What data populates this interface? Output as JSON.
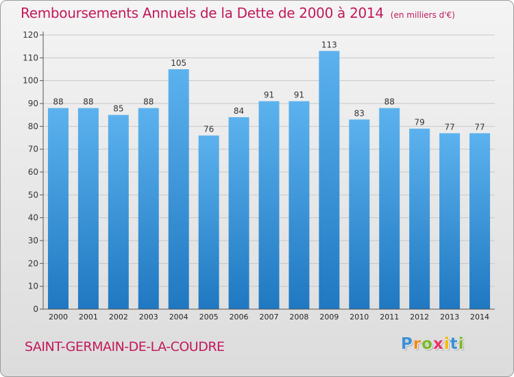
{
  "chart_data": {
    "type": "bar",
    "title": "Remboursements Annuels de la Dette de 2000 à 2014",
    "subtitle": "(en milliers d'€)",
    "categories": [
      "2000",
      "2001",
      "2002",
      "2003",
      "2004",
      "2005",
      "2006",
      "2007",
      "2008",
      "2009",
      "2010",
      "2011",
      "2012",
      "2013",
      "2014"
    ],
    "values": [
      88,
      88,
      85,
      88,
      105,
      76,
      84,
      91,
      91,
      113,
      83,
      88,
      79,
      77,
      77
    ],
    "ylim": [
      0,
      120
    ],
    "yticks": [
      0,
      10,
      20,
      30,
      40,
      50,
      60,
      70,
      80,
      90,
      100,
      110,
      120
    ],
    "xlabel": "",
    "ylabel": "",
    "grid": true
  },
  "commune": "SAINT-GERMAIN-DE-LA-COUDRE",
  "logo": {
    "letters": [
      "P",
      "r",
      "o",
      "x",
      "i",
      "t",
      "i"
    ],
    "colors": [
      "#3a8fd6",
      "#f08a1c",
      "#7bb928",
      "#e8336d",
      "#f5b800",
      "#3a8fd6",
      "#7bb928"
    ]
  },
  "colors": {
    "title": "#c2185b",
    "bar_light": "#5cb2ee",
    "bar_dark": "#1f78c1",
    "grid": "#c7c7c7",
    "axis": "#555555"
  }
}
